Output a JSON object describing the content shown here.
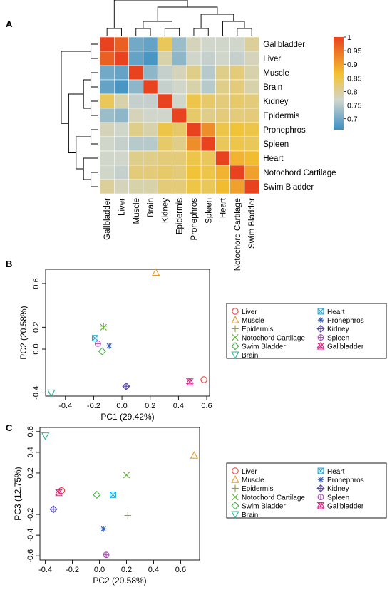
{
  "panels": {
    "A": "A",
    "B": "B",
    "C": "C"
  },
  "chart_data": [
    {
      "type": "heatmap",
      "panel": "A",
      "row_labels": [
        "Gallbladder",
        "Liver",
        "Muscle",
        "Brain",
        "Kidney",
        "Epidermis",
        "Pronephros",
        "Spleen",
        "Heart",
        "Notochord Cartilage",
        "Swim Bladder"
      ],
      "col_labels": [
        "Gallbladder",
        "Liver",
        "Muscle",
        "Brain",
        "Kidney",
        "Epidermis",
        "Pronephros",
        "Spleen",
        "Heart",
        "Notochord Cartilage",
        "Swim Bladder"
      ],
      "values": [
        [
          1.0,
          0.97,
          0.7,
          0.69,
          0.84,
          0.73,
          0.78,
          0.77,
          0.77,
          0.77,
          0.8
        ],
        [
          0.97,
          1.0,
          0.69,
          0.67,
          0.79,
          0.72,
          0.77,
          0.76,
          0.77,
          0.76,
          0.78
        ],
        [
          0.7,
          0.69,
          1.0,
          0.72,
          0.76,
          0.78,
          0.81,
          0.75,
          0.81,
          0.82,
          0.79
        ],
        [
          0.69,
          0.67,
          0.72,
          1.0,
          0.76,
          0.77,
          0.79,
          0.75,
          0.81,
          0.82,
          0.79
        ],
        [
          0.84,
          0.79,
          0.76,
          0.76,
          1.0,
          0.77,
          0.85,
          0.83,
          0.82,
          0.83,
          0.82
        ],
        [
          0.73,
          0.72,
          0.78,
          0.77,
          0.77,
          1.0,
          0.83,
          0.81,
          0.82,
          0.82,
          0.82
        ],
        [
          0.78,
          0.77,
          0.81,
          0.79,
          0.85,
          0.83,
          1.0,
          0.92,
          0.85,
          0.86,
          0.85
        ],
        [
          0.77,
          0.76,
          0.75,
          0.75,
          0.83,
          0.81,
          0.92,
          1.0,
          0.84,
          0.85,
          0.84
        ],
        [
          0.77,
          0.77,
          0.81,
          0.81,
          0.82,
          0.82,
          0.85,
          0.84,
          1.0,
          0.88,
          0.87
        ],
        [
          0.77,
          0.76,
          0.82,
          0.82,
          0.83,
          0.82,
          0.86,
          0.85,
          0.88,
          1.0,
          0.9
        ],
        [
          0.8,
          0.78,
          0.79,
          0.79,
          0.82,
          0.82,
          0.85,
          0.84,
          0.87,
          0.9,
          1.0
        ]
      ],
      "colorbar": {
        "range": [
          0.66,
          1.0
        ],
        "ticks": [
          "1",
          "0.95",
          "0.9",
          "0.85",
          "0.8",
          "0.75",
          "0.7"
        ]
      },
      "colors": {
        "low": "#3a8fc2",
        "mid_low": "#d1d6cd",
        "mid_high": "#f2c232",
        "high": "#e8431e"
      }
    },
    {
      "type": "scatter",
      "panel": "B",
      "xlabel": "PC1 (29.42%)",
      "ylabel": "PC2 (20.58%)",
      "xlim": [
        -0.54,
        0.62
      ],
      "ylim": [
        -0.43,
        0.73
      ],
      "xticks": [
        "-0.4",
        "-0.2",
        "0.0",
        "0.2",
        "0.4",
        "0.6"
      ],
      "yticks": [
        "0.6",
        "0.2",
        "0.0",
        "-0.4"
      ],
      "series": [
        {
          "name": "Liver",
          "x": 0.58,
          "y": -0.28,
          "marker": "circle",
          "color": "#e8423b"
        },
        {
          "name": "Muscle",
          "x": 0.24,
          "y": 0.7,
          "marker": "triangle",
          "color": "#e69b2a"
        },
        {
          "name": "Epidermis",
          "x": -0.13,
          "y": 0.21,
          "marker": "plus",
          "color": "#8aa23a"
        },
        {
          "name": "Notochord Cartilage",
          "x": -0.13,
          "y": 0.2,
          "marker": "x",
          "color": "#5ab030"
        },
        {
          "name": "Swim Bladder",
          "x": -0.14,
          "y": -0.02,
          "marker": "diamond",
          "color": "#44b244"
        },
        {
          "name": "Brain",
          "x": -0.5,
          "y": -0.4,
          "marker": "down-triangle",
          "color": "#2bb58e"
        },
        {
          "name": "Heart",
          "x": -0.19,
          "y": 0.1,
          "marker": "square-x",
          "color": "#22aad6"
        },
        {
          "name": "Pronephros",
          "x": -0.09,
          "y": 0.03,
          "marker": "asterisk",
          "color": "#2a57b8"
        },
        {
          "name": "Kidney",
          "x": 0.03,
          "y": -0.34,
          "marker": "diamond-plus",
          "color": "#5046a8"
        },
        {
          "name": "Spleen",
          "x": -0.17,
          "y": 0.05,
          "marker": "circle-plus",
          "color": "#a848b0"
        },
        {
          "name": "Gallbladder",
          "x": 0.48,
          "y": -0.3,
          "marker": "hourglass",
          "color": "#d9278a"
        }
      ]
    },
    {
      "type": "scatter",
      "panel": "C",
      "xlabel": "PC2 (20.58%)",
      "ylabel": "PC3 (12.75%)",
      "xlim": [
        -0.44,
        0.74
      ],
      "ylim": [
        -0.64,
        0.64
      ],
      "xticks": [
        "-0.4",
        "-0.2",
        "0.0",
        "0.2",
        "0.4",
        "0.6"
      ],
      "yticks": [
        "0.6",
        "0.4",
        "0.2",
        "-0.2",
        "-0.4",
        "-0.6"
      ],
      "series": [
        {
          "name": "Liver",
          "x": -0.28,
          "y": 0.03,
          "marker": "circle",
          "color": "#e8423b"
        },
        {
          "name": "Muscle",
          "x": 0.7,
          "y": 0.37,
          "marker": "triangle",
          "color": "#e69b2a"
        },
        {
          "name": "Epidermis",
          "x": 0.21,
          "y": -0.21,
          "marker": "plus",
          "color": "#8aa23a"
        },
        {
          "name": "Notochord Cartilage",
          "x": 0.2,
          "y": 0.18,
          "marker": "x",
          "color": "#5ab030"
        },
        {
          "name": "Swim Bladder",
          "x": -0.02,
          "y": -0.01,
          "marker": "diamond",
          "color": "#44b244"
        },
        {
          "name": "Brain",
          "x": -0.4,
          "y": 0.56,
          "marker": "down-triangle",
          "color": "#2bb58e"
        },
        {
          "name": "Heart",
          "x": 0.1,
          "y": -0.01,
          "marker": "square-x",
          "color": "#22aad6"
        },
        {
          "name": "Pronephros",
          "x": 0.03,
          "y": -0.34,
          "marker": "asterisk",
          "color": "#2a57b8"
        },
        {
          "name": "Kidney",
          "x": -0.34,
          "y": -0.15,
          "marker": "diamond-plus",
          "color": "#5046a8"
        },
        {
          "name": "Spleen",
          "x": 0.05,
          "y": -0.59,
          "marker": "circle-plus",
          "color": "#a848b0"
        },
        {
          "name": "Gallbladder",
          "x": -0.3,
          "y": 0.01,
          "marker": "hourglass",
          "color": "#d9278a"
        }
      ]
    }
  ]
}
